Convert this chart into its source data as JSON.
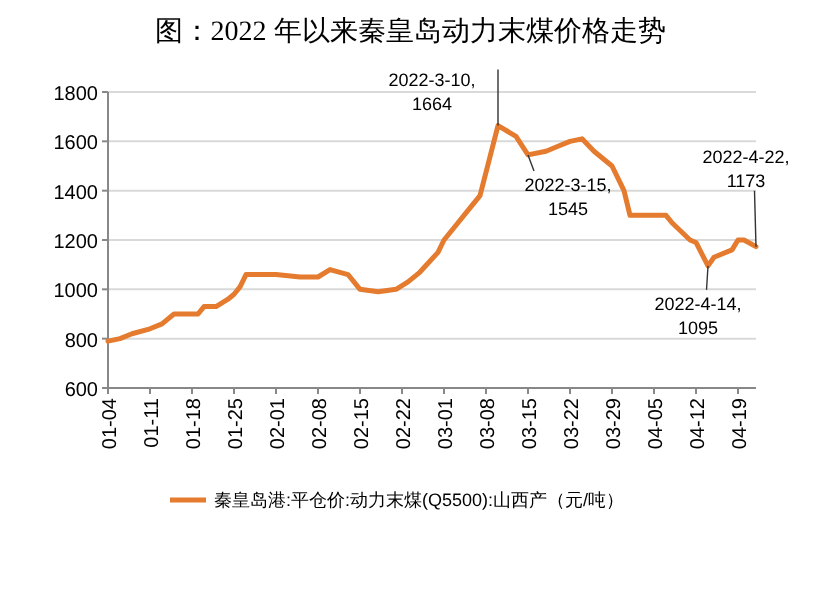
{
  "chart_data": {
    "type": "line",
    "title": "图：2022 年以来秦皇岛动力末煤价格走势",
    "x": [
      "2022-01-04",
      "2022-01-06",
      "2022-01-08",
      "2022-01-11",
      "2022-01-13",
      "2022-01-15",
      "2022-01-18",
      "2022-01-19",
      "2022-01-20",
      "2022-01-22",
      "2022-01-24",
      "2022-01-25",
      "2022-01-26",
      "2022-01-27",
      "2022-02-01",
      "2022-02-05",
      "2022-02-08",
      "2022-02-10",
      "2022-02-13",
      "2022-02-15",
      "2022-02-18",
      "2022-02-21",
      "2022-02-23",
      "2022-02-25",
      "2022-02-28",
      "2022-03-01",
      "2022-03-03",
      "2022-03-05",
      "2022-03-07",
      "2022-03-10",
      "2022-03-13",
      "2022-03-15",
      "2022-03-18",
      "2022-03-20",
      "2022-03-22",
      "2022-03-24",
      "2022-03-26",
      "2022-03-29",
      "2022-03-31",
      "2022-04-01",
      "2022-04-05",
      "2022-04-07",
      "2022-04-08",
      "2022-04-11",
      "2022-04-12",
      "2022-04-14",
      "2022-04-15",
      "2022-04-18",
      "2022-04-19",
      "2022-04-20",
      "2022-04-22"
    ],
    "series": [
      {
        "name": "秦皇岛港:平仓价:动力末煤(Q5500):山西产（元/吨）",
        "color": "#e57b2e",
        "values": [
          790,
          800,
          820,
          840,
          860,
          900,
          900,
          900,
          930,
          930,
          960,
          980,
          1010,
          1060,
          1060,
          1050,
          1050,
          1080,
          1060,
          1000,
          990,
          1000,
          1030,
          1070,
          1150,
          1200,
          1260,
          1320,
          1380,
          1664,
          1620,
          1545,
          1560,
          1580,
          1600,
          1610,
          1560,
          1500,
          1400,
          1300,
          1300,
          1300,
          1270,
          1200,
          1190,
          1095,
          1130,
          1160,
          1200,
          1200,
          1173
        ]
      }
    ],
    "ylim": [
      600,
      1800
    ],
    "yticks": [
      600,
      800,
      1000,
      1200,
      1400,
      1600,
      1800
    ],
    "xlim": [
      "2022-01-04",
      "2022-04-22"
    ],
    "xticks": [
      {
        "value": "2022-01-04",
        "label": "01-04"
      },
      {
        "value": "2022-01-11",
        "label": "01-11"
      },
      {
        "value": "2022-01-18",
        "label": "01-18"
      },
      {
        "value": "2022-01-25",
        "label": "01-25"
      },
      {
        "value": "2022-02-01",
        "label": "02-01"
      },
      {
        "value": "2022-02-08",
        "label": "02-08"
      },
      {
        "value": "2022-02-15",
        "label": "02-15"
      },
      {
        "value": "2022-02-22",
        "label": "02-22"
      },
      {
        "value": "2022-03-01",
        "label": "03-01"
      },
      {
        "value": "2022-03-08",
        "label": "03-08"
      },
      {
        "value": "2022-03-15",
        "label": "03-15"
      },
      {
        "value": "2022-03-22",
        "label": "03-22"
      },
      {
        "value": "2022-03-29",
        "label": "03-29"
      },
      {
        "value": "2022-04-05",
        "label": "04-05"
      },
      {
        "value": "2022-04-12",
        "label": "04-12"
      },
      {
        "value": "2022-04-19",
        "label": "04-19"
      }
    ],
    "annotations": [
      {
        "text": "2022-3-10,\n1664",
        "x": "2022-03-10",
        "y": 1664
      },
      {
        "text": "2022-3-15,\n1545",
        "x": "2022-03-15",
        "y": 1545
      },
      {
        "text": "2022-4-22,\n1173",
        "x": "2022-04-22",
        "y": 1173
      },
      {
        "text": "2022-4-14,\n1095",
        "x": "2022-04-14",
        "y": 1095
      }
    ],
    "grid": "y",
    "legend": "bottom",
    "marker": "none",
    "line_style": "solid"
  }
}
